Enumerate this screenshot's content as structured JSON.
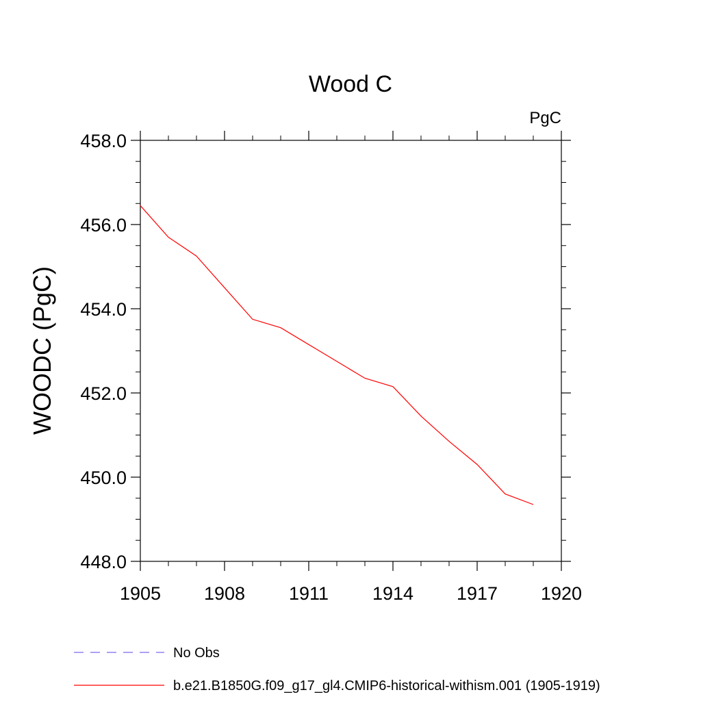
{
  "chart_data": {
    "type": "line",
    "title": "Wood C",
    "units_label": "PgC",
    "xlabel": "",
    "ylabel": "WOODC  (PgC)",
    "xlim": [
      1905,
      1920
    ],
    "ylim": [
      448.0,
      458.0
    ],
    "x_ticks": [
      "1905",
      "1908",
      "1911",
      "1914",
      "1917",
      "1920"
    ],
    "y_ticks": [
      "448.0",
      "450.0",
      "452.0",
      "454.0",
      "456.0",
      "458.0"
    ],
    "grid": false,
    "legend_position": "bottom-left",
    "series": [
      {
        "name": "b.e21.B1850G.f09_g17_gl4.CMIP6-historical-withism.001 (1905-1919)",
        "color": "#ff0000",
        "style": "solid",
        "x": [
          1905,
          1906,
          1907,
          1908,
          1909,
          1910,
          1911,
          1912,
          1913,
          1914,
          1915,
          1916,
          1917,
          1918,
          1919
        ],
        "values": [
          456.45,
          455.7,
          455.25,
          454.5,
          453.75,
          453.55,
          453.15,
          452.75,
          452.35,
          452.15,
          451.45,
          450.85,
          450.3,
          449.6,
          449.35
        ]
      }
    ],
    "legend": [
      {
        "label": "No Obs",
        "color": "#7b68ee",
        "style": "dashed"
      },
      {
        "label": "b.e21.B1850G.f09_g17_gl4.CMIP6-historical-withism.001 (1905-1919)",
        "color": "#ff0000",
        "style": "solid"
      }
    ]
  }
}
